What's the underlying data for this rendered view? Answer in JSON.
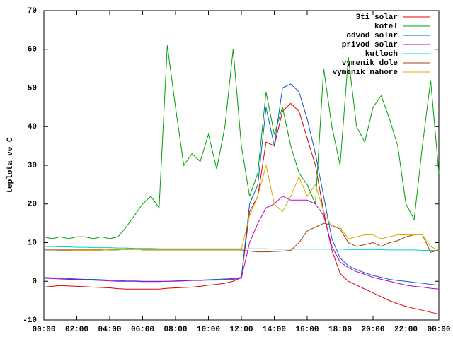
{
  "chart_data": {
    "type": "line",
    "y_label": "teplota ve C",
    "x": [
      0,
      0.5,
      1,
      1.5,
      2,
      2.5,
      3,
      3.5,
      4,
      4.5,
      5,
      5.5,
      6,
      6.5,
      7,
      7.5,
      8,
      8.5,
      9,
      9.5,
      10,
      10.5,
      11,
      11.5,
      12,
      12.5,
      13,
      13.5,
      14,
      14.5,
      15,
      15.5,
      16,
      16.5,
      17,
      17.5,
      18,
      18.5,
      19,
      19.5,
      20,
      20.5,
      21,
      21.5,
      22,
      22.5,
      23,
      23.5,
      24
    ],
    "xlim": [
      0,
      24
    ],
    "xticks": [
      {
        "value": 0,
        "label": "00:00"
      },
      {
        "value": 2,
        "label": "02:00"
      },
      {
        "value": 4,
        "label": "04:00"
      },
      {
        "value": 6,
        "label": "06:00"
      },
      {
        "value": 8,
        "label": "08:00"
      },
      {
        "value": 10,
        "label": "10:00"
      },
      {
        "value": 12,
        "label": "12:00"
      },
      {
        "value": 14,
        "label": "14:00"
      },
      {
        "value": 16,
        "label": "16:00"
      },
      {
        "value": 18,
        "label": "18:00"
      },
      {
        "value": 20,
        "label": "20:00"
      },
      {
        "value": 22,
        "label": "22:00"
      },
      {
        "value": 24,
        "label": "00:00"
      }
    ],
    "ylim": [
      -10,
      70
    ],
    "yticks": [
      -10,
      0,
      10,
      20,
      30,
      40,
      50,
      60,
      70
    ],
    "grid": false,
    "legend": "top-right",
    "series": [
      {
        "name": "3ti solar",
        "color": "#e00000",
        "values": [
          -1.5,
          -1.3,
          -1.1,
          -1.2,
          -1.3,
          -1.4,
          -1.5,
          -1.6,
          -1.7,
          -1.9,
          -2,
          -2,
          -2,
          -2,
          -2,
          -1.8,
          -1.7,
          -1.6,
          -1.5,
          -1.3,
          -1,
          -0.8,
          -0.5,
          0,
          1,
          18,
          22,
          36,
          35,
          44,
          46,
          44,
          37,
          30,
          18,
          8,
          2,
          0,
          -1,
          -2,
          -3,
          -4,
          -5,
          -5.8,
          -6.5,
          -7,
          -7.5,
          -8,
          -8.5
        ]
      },
      {
        "name": "kotel",
        "color": "#00a000",
        "values": [
          11.5,
          11,
          11.5,
          11,
          11.5,
          11.5,
          11,
          11.5,
          11,
          11.5,
          14,
          17,
          20,
          22,
          19,
          61,
          45,
          30,
          33,
          31,
          38,
          29,
          40,
          60,
          35,
          22,
          28,
          49,
          38,
          45,
          35,
          28,
          25,
          20,
          55,
          40,
          30,
          58,
          40,
          36,
          45,
          48,
          42,
          35,
          20,
          16,
          35,
          52,
          28
        ]
      },
      {
        "name": "odvod solar",
        "color": "#0060d0",
        "values": [
          1,
          0.9,
          0.8,
          0.7,
          0.6,
          0.5,
          0.5,
          0.4,
          0.3,
          0.2,
          0.1,
          0.1,
          0,
          0,
          0,
          0,
          0.1,
          0.2,
          0.3,
          0.3,
          0.4,
          0.5,
          0.6,
          0.7,
          1,
          20,
          25,
          45,
          35,
          50,
          51,
          49,
          42,
          33,
          22,
          11,
          6,
          4,
          3,
          2.2,
          1.5,
          1,
          0.5,
          0.2,
          0,
          -0.3,
          -0.5,
          -0.8,
          -1
        ]
      },
      {
        "name": "privod solar",
        "color": "#c000c0",
        "values": [
          0.8,
          0.7,
          0.6,
          0.5,
          0.5,
          0.4,
          0.3,
          0.2,
          0.1,
          0,
          0,
          0,
          -0.1,
          -0.1,
          -0.1,
          0,
          0,
          0.1,
          0.2,
          0.2,
          0.3,
          0.3,
          0.4,
          0.5,
          0.8,
          10,
          15,
          19,
          20,
          22,
          21,
          21,
          21,
          20,
          17,
          9,
          5,
          3.5,
          2.5,
          1.8,
          1,
          0.5,
          0,
          -0.5,
          -1,
          -1.3,
          -1.5,
          -1.8,
          -2
        ]
      },
      {
        "name": "kutloch",
        "color": "#00d0d0",
        "values": [
          9,
          9,
          8.9,
          8.9,
          8.8,
          8.8,
          8.7,
          8.7,
          8.7,
          8.6,
          8.6,
          8.5,
          8.5,
          8.5,
          8.4,
          8.4,
          8.4,
          8.4,
          8.4,
          8.4,
          8.4,
          8.4,
          8.4,
          8.4,
          8.4,
          8.4,
          8.4,
          8.4,
          8.3,
          8.3,
          8.3,
          8.3,
          8.3,
          8.3,
          8.3,
          8.3,
          8.3,
          8.2,
          8.2,
          8.2,
          8.2,
          8.2,
          8.1,
          8.1,
          8.1,
          8.1,
          8,
          8,
          8
        ]
      },
      {
        "name": "vymenik dole",
        "color": "#a04000",
        "values": [
          8.1,
          8.1,
          8.1,
          8.1,
          8.1,
          8.1,
          8.1,
          8.1,
          8.1,
          8.1,
          8.4,
          8.4,
          8.1,
          8.1,
          8.1,
          8.1,
          8.1,
          8.1,
          8.1,
          8.1,
          8.1,
          8.1,
          8.1,
          8.1,
          8.1,
          7.8,
          7.6,
          7.6,
          7.7,
          7.8,
          8,
          10,
          13,
          14,
          15,
          14.5,
          13.5,
          10,
          9,
          9.5,
          10,
          9,
          10,
          10.5,
          11.5,
          12,
          12,
          7.5,
          8
        ]
      },
      {
        "name": "vymenik nahore",
        "color": "#d0b000",
        "values": [
          7.8,
          7.8,
          7.9,
          7.9,
          8,
          8,
          8,
          8,
          8.2,
          8.2,
          8.2,
          8.2,
          8.2,
          8.2,
          8.2,
          8.2,
          8.2,
          8.2,
          8.2,
          8.2,
          8.2,
          8.2,
          8.2,
          8.2,
          8.2,
          17,
          22,
          30,
          20,
          18,
          22,
          27,
          22,
          25,
          18,
          14,
          14,
          11,
          11.5,
          12,
          12,
          11,
          11.5,
          12,
          12,
          12,
          12,
          9,
          8
        ]
      }
    ]
  }
}
